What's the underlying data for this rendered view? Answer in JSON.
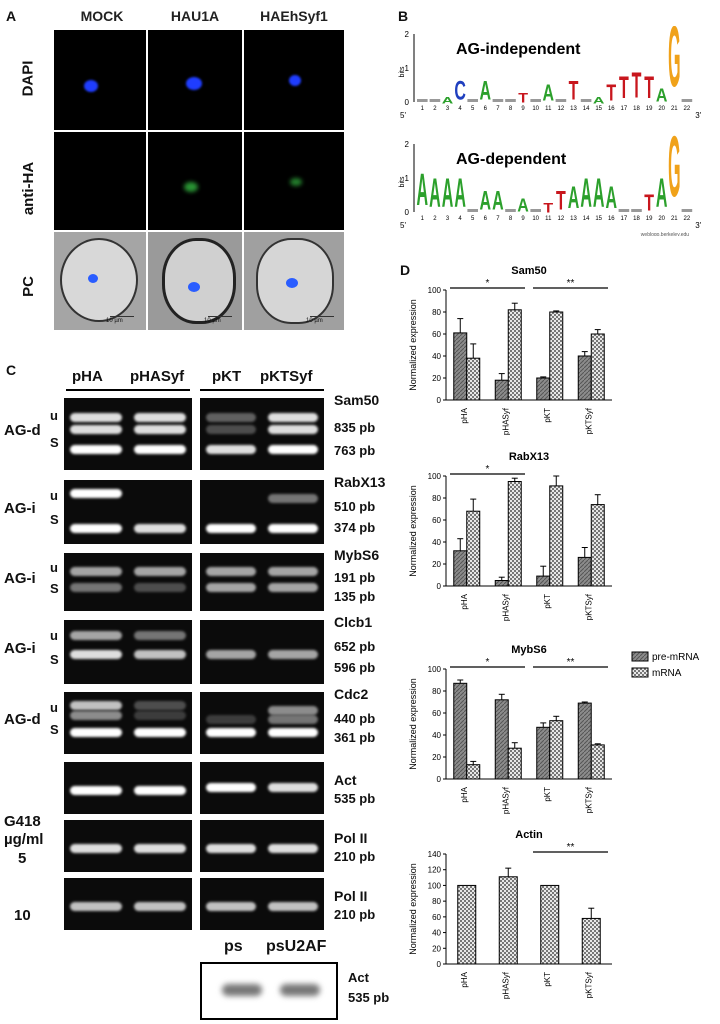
{
  "panelA": {
    "label": "A",
    "columns": [
      "MOCK",
      "HAU1A",
      "HAEhSyf1"
    ],
    "rows": [
      "DAPI",
      "anti-HA",
      "PC"
    ],
    "scale_bar": "10 µm"
  },
  "panelB": {
    "label": "B",
    "logos": [
      {
        "title": "AG-independent",
        "ylabel": "bits",
        "letters": "..ACTA..T.A.T.ATTTTAG"
      },
      {
        "title": "AG-dependent",
        "ylabel": "bits",
        "letters": "AAAA.AA.A.TTAAAA..TAG"
      }
    ],
    "positions": [
      "1",
      "2",
      "3",
      "4",
      "5",
      "6",
      "7",
      "8",
      "9",
      "10",
      "11",
      "12",
      "13",
      "14",
      "15",
      "16",
      "17",
      "18",
      "19",
      "20",
      "21",
      "22"
    ],
    "end5": "5'",
    "end3": "3'",
    "credit": "weblogo.berkeley.edu"
  },
  "panelC": {
    "label": "C",
    "headers_left": [
      "pHA",
      "pHASyf"
    ],
    "headers_right": [
      "pKT",
      "pKTSyf"
    ],
    "gels": [
      {
        "type": "AG-d",
        "u": "u",
        "s": "S",
        "gene": "Sam50",
        "u_size": "835 pb",
        "s_size": "763 pb"
      },
      {
        "type": "AG-i",
        "u": "u",
        "s": "S",
        "gene": "RabX13",
        "u_size": "510 pb",
        "s_size": "374 pb"
      },
      {
        "type": "AG-i",
        "u": "u",
        "s": "S",
        "gene": "MybS6",
        "u_size": "191 pb",
        "s_size": "135 pb"
      },
      {
        "type": "AG-i",
        "u": "u",
        "s": "S",
        "gene": "Clcb1",
        "u_size": "652 pb",
        "s_size": "596 pb"
      },
      {
        "type": "AG-d",
        "u": "u",
        "s": "S",
        "gene": "Cdc2",
        "u_size": "440 pb",
        "s_size": "361 pb"
      },
      {
        "gene": "Act",
        "s_size": "535 pb"
      },
      {
        "gene": "Pol II",
        "s_size": "210 pb"
      },
      {
        "gene": "Pol II",
        "s_size": "210 pb"
      }
    ],
    "g418_label_1": "G418",
    "g418_label_2": "µg/ml",
    "g418_5": "5",
    "g418_10": "10",
    "bottom_headers": [
      "ps",
      "psU2AF"
    ],
    "bottom_gene": "Act",
    "bottom_size": "535 pb"
  },
  "panelD": {
    "label": "D",
    "legend": [
      "pre-mRNA",
      "mRNA"
    ]
  },
  "chart_data": [
    {
      "type": "bar",
      "title": "Sam50",
      "categories": [
        "pHA",
        "pHASyf",
        "pKT",
        "pKTSyf"
      ],
      "ylabel": "Normalized expression",
      "ylim": [
        0,
        100
      ],
      "yticks": [
        0,
        20,
        40,
        60,
        80,
        100
      ],
      "series": [
        {
          "name": "pre-mRNA",
          "values": [
            61,
            18,
            20,
            40
          ],
          "errors": [
            13,
            6,
            1,
            4
          ]
        },
        {
          "name": "mRNA",
          "values": [
            38,
            82,
            80,
            60
          ],
          "errors": [
            13,
            6,
            1,
            4
          ]
        }
      ],
      "annotations": [
        {
          "text": "*",
          "from": 0,
          "to": 1
        },
        {
          "text": "**",
          "from": 2,
          "to": 3
        }
      ]
    },
    {
      "type": "bar",
      "title": "RabX13",
      "categories": [
        "pHA",
        "pHASyf",
        "pKT",
        "pKTSyf"
      ],
      "ylabel": "Normalized expression",
      "ylim": [
        0,
        100
      ],
      "yticks": [
        0,
        20,
        40,
        60,
        80,
        100
      ],
      "series": [
        {
          "name": "pre-mRNA",
          "values": [
            32,
            5,
            9,
            26
          ],
          "errors": [
            11,
            3,
            9,
            9
          ]
        },
        {
          "name": "mRNA",
          "values": [
            68,
            95,
            91,
            74
          ],
          "errors": [
            11,
            3,
            9,
            9
          ]
        }
      ],
      "annotations": [
        {
          "text": "*",
          "from": 0,
          "to": 1
        }
      ]
    },
    {
      "type": "bar",
      "title": "MybS6",
      "categories": [
        "pHA",
        "pHASyf",
        "pKT",
        "pKTSyf"
      ],
      "ylabel": "Normalized expression",
      "ylim": [
        0,
        100
      ],
      "yticks": [
        0,
        20,
        40,
        60,
        80,
        100
      ],
      "series": [
        {
          "name": "pre-mRNA",
          "values": [
            87,
            72,
            47,
            69
          ],
          "errors": [
            3,
            5,
            4,
            1
          ]
        },
        {
          "name": "mRNA",
          "values": [
            13,
            28,
            53,
            31
          ],
          "errors": [
            3,
            5,
            4,
            1
          ]
        }
      ],
      "annotations": [
        {
          "text": "*",
          "from": 0,
          "to": 1
        },
        {
          "text": "**",
          "from": 2,
          "to": 3
        }
      ]
    },
    {
      "type": "bar",
      "title": "Actin",
      "categories": [
        "pHA",
        "pHASyf",
        "pKT",
        "pKTSyf"
      ],
      "ylabel": "Normalized expression",
      "ylim": [
        0,
        140
      ],
      "yticks": [
        0,
        20,
        40,
        60,
        80,
        100,
        120,
        140
      ],
      "series": [
        {
          "values": [
            100,
            111,
            100,
            58
          ],
          "errors": [
            0,
            11,
            0,
            13
          ]
        }
      ],
      "annotations": [
        {
          "text": "**",
          "from": 2,
          "to": 3
        }
      ]
    }
  ],
  "colors": {
    "dapi": "#1f3dff",
    "antiHA": "#3bd24a",
    "bar_fill": "#8c8c8c",
    "logoA": "#2ca02c",
    "logoC": "#1f3fbf",
    "logoG": "#f0a21a",
    "logoT": "#c8161d"
  }
}
